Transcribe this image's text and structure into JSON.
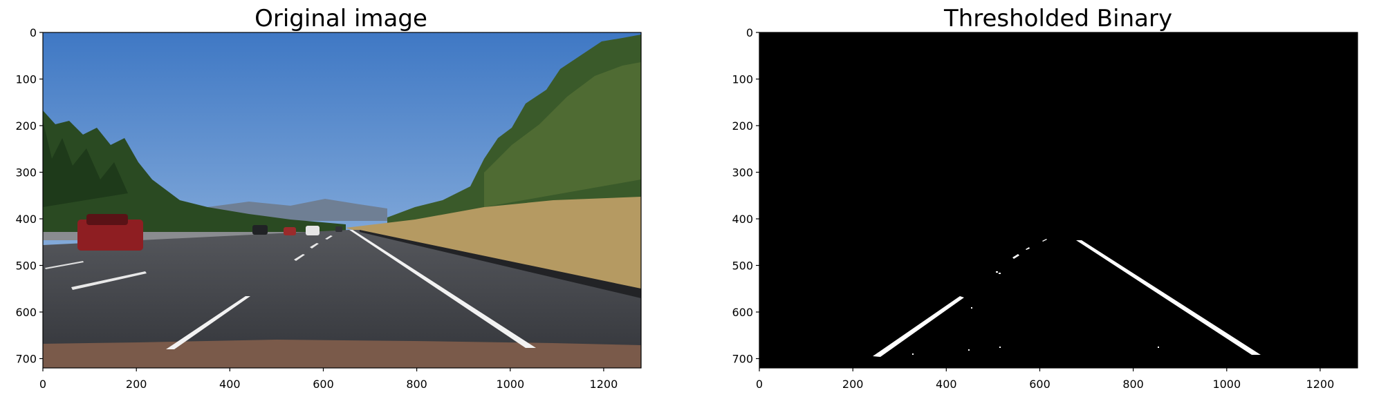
{
  "figure": {
    "panels": [
      {
        "title": "Original image",
        "x_ticks": [
          "0",
          "200",
          "400",
          "600",
          "800",
          "1000",
          "1200"
        ],
        "y_ticks": [
          "0",
          "100",
          "200",
          "300",
          "400",
          "500",
          "600",
          "700"
        ],
        "x_range": [
          0,
          1280
        ],
        "y_range": [
          0,
          720
        ],
        "content": "road-photo",
        "colors": {
          "sky": "#5a8fd0",
          "road": "#3b3d42",
          "lane": "#f4f4f4"
        }
      },
      {
        "title": "Thresholded Binary",
        "x_ticks": [
          "0",
          "200",
          "400",
          "600",
          "800",
          "1000",
          "1200"
        ],
        "y_ticks": [
          "0",
          "100",
          "200",
          "300",
          "400",
          "500",
          "600",
          "700"
        ],
        "x_range": [
          0,
          1280
        ],
        "y_range": [
          0,
          720
        ],
        "content": "binary-mask",
        "colors": {
          "background": "#000000",
          "mask": "#ffffff"
        }
      }
    ]
  }
}
